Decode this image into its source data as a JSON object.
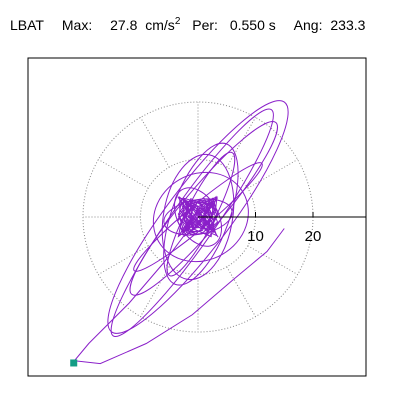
{
  "header": {
    "station": "LBAT",
    "max_label": "Max:",
    "max_value": "27.8",
    "max_unit": "cm/s",
    "max_unit_exp": "2",
    "per_label": "Per:",
    "per_value": "0.550 s",
    "ang_label": "Ang:",
    "ang_value": "233.3"
  },
  "chart_data": {
    "type": "polar-orbit",
    "radial_ticks": [
      10,
      20
    ],
    "rings": [
      10,
      20
    ],
    "spoke_every_deg": 30,
    "grid": "dotted",
    "trace_color": "#8a1fc9",
    "marker_color": "#149c85",
    "ellipses": [
      {
        "cx": 0,
        "cy": 0,
        "a": 25.0,
        "b": 5.5,
        "angle": 53
      },
      {
        "cx": 1.0,
        "cy": 1.5,
        "a": 19.5,
        "b": 3.5,
        "angle": 50
      },
      {
        "cx": -1.0,
        "cy": -1.0,
        "a": 24.0,
        "b": 3.8,
        "angle": 55
      },
      {
        "cx": 0.5,
        "cy": 0.5,
        "a": 13.0,
        "b": 5.0,
        "angle": 70
      },
      {
        "cx": 0,
        "cy": 0,
        "a": 11.0,
        "b": 6.0,
        "angle": 80
      },
      {
        "cx": 0.5,
        "cy": 0,
        "a": 8.5,
        "b": 7.5,
        "angle": 30
      },
      {
        "cx": 0,
        "cy": 0,
        "a": 6.0,
        "b": 3.0,
        "angle": 10
      },
      {
        "cx": 0,
        "cy": 0,
        "a": 5.5,
        "b": 3.5,
        "angle": 120
      },
      {
        "cx": 0,
        "cy": 0,
        "a": 14.5,
        "b": 2.0,
        "angle": 40
      },
      {
        "cx": 0.5,
        "cy": 0.5,
        "a": 12.0,
        "b": 2.5,
        "angle": 63
      },
      {
        "cx": 0,
        "cy": 0,
        "a": 3.0,
        "b": 2.0,
        "angle": 90
      },
      {
        "cx": 0,
        "cy": 0,
        "a": 2.4,
        "b": 1.8,
        "angle": 20
      }
    ],
    "extra_path": [
      [
        0,
        0
      ],
      [
        -6,
        -8
      ],
      [
        -12,
        -15
      ],
      [
        -19,
        -22
      ],
      [
        -21.5,
        -25
      ],
      [
        -17,
        -25.5
      ],
      [
        -9,
        -22
      ],
      [
        -1,
        -17
      ],
      [
        6,
        -11
      ],
      [
        12,
        -6
      ],
      [
        15,
        -2
      ]
    ],
    "marker": [
      -21.7,
      -25.3
    ]
  }
}
